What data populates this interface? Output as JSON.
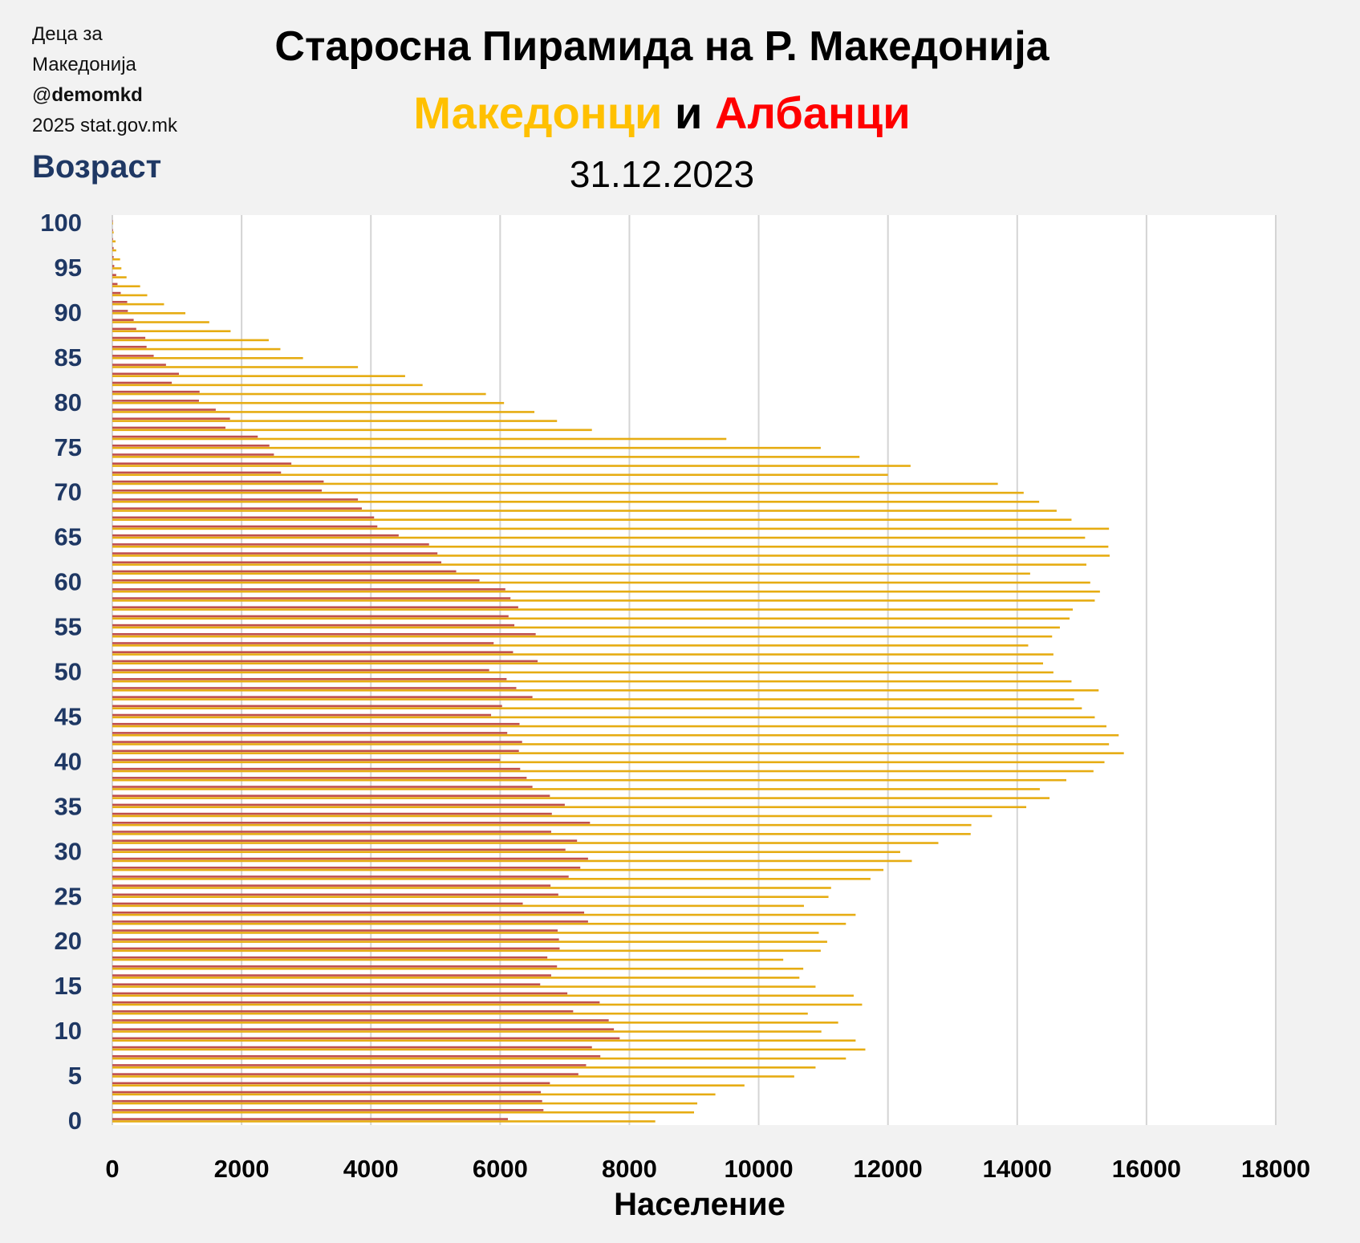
{
  "credit": {
    "line1": "Деца за",
    "line2": "Македонија",
    "handle_prefix": "@",
    "handle": "demomkd",
    "line4": "2025 stat.gov.mk"
  },
  "title": "Старосна Пирамида на Р. Македонија",
  "subtitle": {
    "part1": "Македонци",
    "part2": " и ",
    "part3": "Албанци"
  },
  "date": "31.12.2023",
  "colors": {
    "macedonians": "#e6ac12",
    "albanians": "#c0504d",
    "axis_text": "#1f3864",
    "grid": "#d4d4d4"
  },
  "chart_data": {
    "type": "bar",
    "orientation": "horizontal",
    "title": "Старосна Пирамида на Р. Македонија",
    "ylabel": "Возраст",
    "xlabel": "Население",
    "xlim": [
      0,
      18000
    ],
    "xticks": [
      0,
      2000,
      4000,
      6000,
      8000,
      10000,
      12000,
      14000,
      16000,
      18000
    ],
    "yticks": [
      0,
      5,
      10,
      15,
      20,
      25,
      30,
      35,
      40,
      45,
      50,
      55,
      60,
      65,
      70,
      75,
      80,
      85,
      90,
      95,
      100
    ],
    "grid": true,
    "categories_age": [
      0,
      1,
      2,
      3,
      4,
      5,
      6,
      7,
      8,
      9,
      10,
      11,
      12,
      13,
      14,
      15,
      16,
      17,
      18,
      19,
      20,
      21,
      22,
      23,
      24,
      25,
      26,
      27,
      28,
      29,
      30,
      31,
      32,
      33,
      34,
      35,
      36,
      37,
      38,
      39,
      40,
      41,
      42,
      43,
      44,
      45,
      46,
      47,
      48,
      49,
      50,
      51,
      52,
      53,
      54,
      55,
      56,
      57,
      58,
      59,
      60,
      61,
      62,
      63,
      64,
      65,
      66,
      67,
      68,
      69,
      70,
      71,
      72,
      73,
      74,
      75,
      76,
      77,
      78,
      79,
      80,
      81,
      82,
      83,
      84,
      85,
      86,
      87,
      88,
      89,
      90,
      91,
      92,
      93,
      94,
      95,
      96,
      97,
      98,
      99,
      100
    ],
    "series": [
      {
        "name": "Македонци",
        "values": [
          8400,
          9000,
          9050,
          9330,
          9780,
          10550,
          10880,
          11350,
          11650,
          11500,
          10970,
          11230,
          10760,
          11600,
          11470,
          10880,
          10630,
          10690,
          10380,
          10960,
          11060,
          10930,
          11350,
          11500,
          10700,
          11080,
          11120,
          11730,
          11930,
          12370,
          12190,
          12780,
          13280,
          13290,
          13610,
          14140,
          14500,
          14350,
          14760,
          15180,
          15350,
          15650,
          15420,
          15570,
          15380,
          15200,
          15000,
          14880,
          15260,
          14840,
          14560,
          14400,
          14560,
          14170,
          14540,
          14660,
          14810,
          14860,
          15200,
          15280,
          15130,
          14200,
          15070,
          15430,
          15410,
          15050,
          15420,
          14840,
          14610,
          14340,
          14100,
          13700,
          12000,
          12350,
          11560,
          10960,
          9500,
          7420,
          6880,
          6530,
          6060,
          5780,
          4800,
          4530,
          3800,
          2950,
          2600,
          2420,
          1830,
          1500,
          1130,
          800,
          540,
          430,
          220,
          140,
          120,
          60,
          50,
          20,
          10
        ]
      },
      {
        "name": "Албанци",
        "values": [
          6120,
          6670,
          6650,
          6630,
          6770,
          7210,
          7330,
          7550,
          7420,
          7850,
          7760,
          7680,
          7130,
          7540,
          7040,
          6620,
          6790,
          6880,
          6730,
          6920,
          6910,
          6890,
          7360,
          7300,
          6350,
          6900,
          6780,
          7060,
          7240,
          7360,
          7010,
          7190,
          6790,
          7390,
          6800,
          7000,
          6770,
          6500,
          6410,
          6310,
          6000,
          6290,
          6340,
          6110,
          6300,
          5860,
          6030,
          6500,
          6250,
          6100,
          5830,
          6580,
          6200,
          5900,
          6550,
          6220,
          6130,
          6280,
          6160,
          6080,
          5680,
          5320,
          5090,
          5030,
          4900,
          4430,
          4100,
          4050,
          3860,
          3800,
          3240,
          3270,
          2610,
          2770,
          2500,
          2430,
          2250,
          1750,
          1820,
          1600,
          1340,
          1350,
          920,
          1030,
          830,
          640,
          530,
          510,
          370,
          330,
          240,
          230,
          130,
          80,
          60,
          30,
          20,
          20,
          10,
          10,
          5
        ]
      }
    ]
  }
}
